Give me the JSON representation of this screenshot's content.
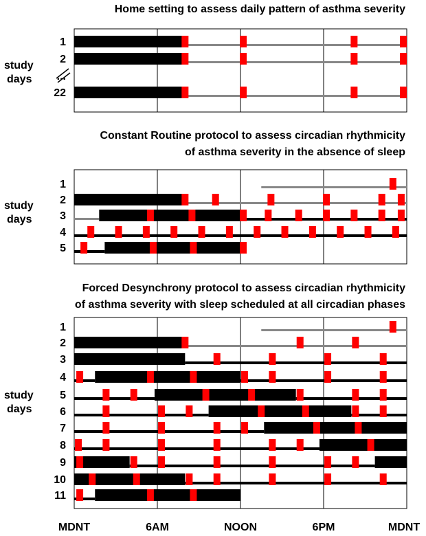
{
  "colors": {
    "sleep": "#000000",
    "wake": "#888888",
    "sample": "#ff0000",
    "frame": "#000000"
  },
  "axis_ticks": [
    "MDNT",
    "6AM",
    "NOON",
    "6PM",
    "MDNT"
  ],
  "y_label": [
    "study",
    "days"
  ],
  "panels": [
    {
      "title_lines": [
        "Home setting to assess daily pattern of asthma severity"
      ],
      "rows": [
        {
          "day": "1",
          "segments": [
            [
              0,
              8,
              "sleep"
            ],
            [
              8,
              24,
              "wake"
            ]
          ],
          "samples": [
            8,
            12.2,
            20.2,
            24
          ]
        },
        {
          "day": "2",
          "segments": [
            [
              0,
              8,
              "sleep"
            ],
            [
              8,
              24,
              "wake"
            ]
          ],
          "samples": [
            8,
            12.2,
            20.2,
            24
          ]
        },
        {
          "day": "...",
          "segments": [],
          "samples": []
        },
        {
          "day": "22",
          "segments": [
            [
              0,
              8,
              "sleep"
            ],
            [
              8,
              24,
              "wake"
            ]
          ],
          "samples": [
            8,
            12.2,
            20.2,
            24
          ]
        }
      ]
    },
    {
      "title_lines": [
        "Constant Routine protocol to assess circadian rhythmicity",
        "of asthma severity in the absence of sleep"
      ],
      "rows": [
        {
          "day": "1",
          "segments": [
            [
              13.5,
              24,
              "wake"
            ]
          ],
          "samples": [
            23
          ]
        },
        {
          "day": "2",
          "segments": [
            [
              0,
              8,
              "sleep"
            ],
            [
              8,
              24,
              "wake"
            ]
          ],
          "samples": [
            8,
            10.2,
            14.2,
            18.2,
            22.2,
            23.6
          ]
        },
        {
          "day": "3",
          "segments": [
            [
              0,
              1.8,
              "wake"
            ],
            [
              1.8,
              12,
              "sleep"
            ],
            [
              12,
              24,
              "line"
            ]
          ],
          "samples": [
            5.5,
            8.5,
            12.2,
            14,
            16.2,
            18.2,
            20.2,
            22.2,
            23.6
          ]
        },
        {
          "day": "4",
          "segments": [
            [
              0,
              24,
              "line"
            ]
          ],
          "samples": [
            1.2,
            3.2,
            5.2,
            7.2,
            9.2,
            11.2,
            13.2,
            15.2,
            17.2,
            19.2,
            21.2,
            23.2
          ]
        },
        {
          "day": "5",
          "segments": [
            [
              0,
              2.2,
              "line"
            ],
            [
              2.2,
              12,
              "sleep"
            ]
          ],
          "samples": [
            0.7,
            5.7,
            8.6,
            12.2
          ]
        }
      ]
    },
    {
      "title_lines": [
        "Forced Desynchrony protocol to assess circadian rhythmicity",
        "of asthma severity with sleep scheduled at all circadian phases"
      ],
      "rows": [
        {
          "day": "1",
          "segments": [
            [
              13.5,
              24,
              "wake"
            ]
          ],
          "samples": [
            23
          ]
        },
        {
          "day": "2",
          "segments": [
            [
              0,
              8,
              "sleep"
            ],
            [
              8,
              24,
              "wake"
            ]
          ],
          "samples": [
            8,
            16.3,
            20.3
          ]
        },
        {
          "day": "3",
          "segments": [
            [
              0,
              8,
              "sleep"
            ],
            [
              8,
              24,
              "line"
            ]
          ],
          "samples": [
            10.3,
            14.3,
            18.3,
            22.3
          ]
        },
        {
          "day": "4",
          "segments": [
            [
              0,
              1.5,
              "line"
            ],
            [
              1.5,
              12,
              "sleep"
            ],
            [
              12,
              24,
              "line"
            ]
          ],
          "samples": [
            0.4,
            5.5,
            8.6,
            12.3,
            14.3,
            18.3,
            22.3
          ]
        },
        {
          "day": "5",
          "segments": [
            [
              0,
              5.8,
              "line"
            ],
            [
              5.8,
              16,
              "sleep"
            ],
            [
              16,
              24,
              "line"
            ]
          ],
          "samples": [
            2.3,
            4.3,
            9.5,
            12.8,
            16.3,
            20.3,
            22.3
          ]
        },
        {
          "day": "6",
          "segments": [
            [
              0,
              9.7,
              "line"
            ],
            [
              9.7,
              20,
              "sleep"
            ],
            [
              20,
              24,
              "line"
            ]
          ],
          "samples": [
            2.3,
            6.3,
            8.3,
            13.5,
            16.7,
            20.3,
            22.3
          ]
        },
        {
          "day": "7",
          "segments": [
            [
              0,
              13.7,
              "line"
            ],
            [
              13.7,
              24,
              "sleep"
            ]
          ],
          "samples": [
            2.3,
            6.3,
            10.3,
            12.3,
            17.5,
            20.5
          ]
        },
        {
          "day": "8",
          "segments": [
            [
              0,
              17.7,
              "line"
            ],
            [
              17.7,
              24,
              "sleep"
            ]
          ],
          "samples": [
            0.3,
            2.3,
            6.3,
            10.3,
            14.3,
            16.3,
            21.4
          ]
        },
        {
          "day": "9",
          "segments": [
            [
              0,
              4,
              "sleep"
            ],
            [
              4,
              21.7,
              "line"
            ],
            [
              21.7,
              24,
              "sleep"
            ]
          ],
          "samples": [
            0.4,
            4.3,
            6.3,
            10.3,
            14.3,
            18.3,
            20.3
          ]
        },
        {
          "day": "10",
          "segments": [
            [
              0,
              8,
              "sleep"
            ],
            [
              8,
              24,
              "line"
            ]
          ],
          "samples": [
            1.3,
            4.5,
            8.3,
            10.3,
            14.3,
            18.3,
            22.3
          ]
        },
        {
          "day": "11",
          "segments": [
            [
              0,
              1.5,
              "line"
            ],
            [
              1.5,
              12,
              "sleep"
            ]
          ],
          "samples": [
            0.4,
            5.5,
            8.6
          ]
        }
      ]
    }
  ]
}
